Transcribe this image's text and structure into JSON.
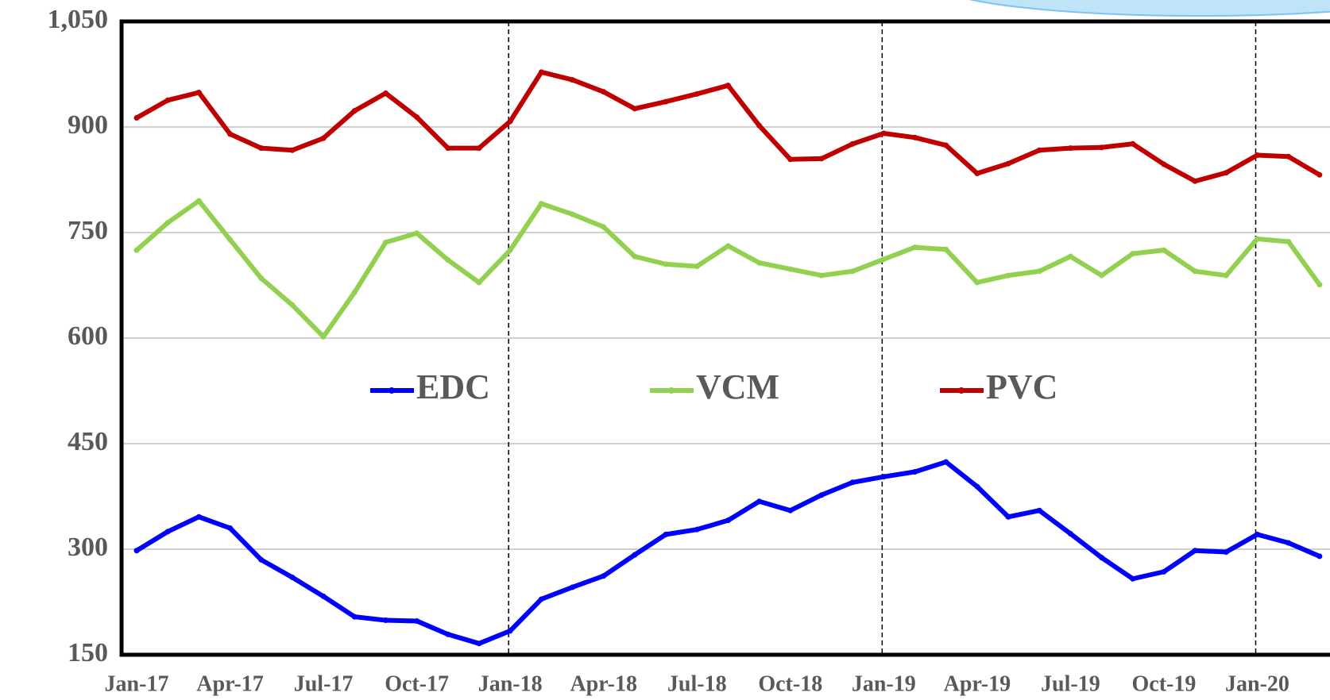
{
  "chart_data": {
    "type": "line",
    "categories": [
      "Jan-17",
      null,
      null,
      "Apr-17",
      null,
      null,
      "Jul-17",
      null,
      null,
      "Oct-17",
      null,
      null,
      "Jan-18",
      null,
      null,
      "Apr-18",
      null,
      null,
      "Jul-18",
      null,
      null,
      "Oct-18",
      null,
      null,
      "Jan-19",
      null,
      null,
      "Apr-19",
      null,
      null,
      "Jul-19",
      null,
      null,
      "Oct-19",
      null,
      null,
      "Jan-20",
      null,
      null
    ],
    "series": [
      {
        "name": "EDC",
        "color": "#0000ff",
        "values": [
          298,
          325,
          346,
          330,
          285,
          260,
          233,
          204,
          199,
          198,
          179,
          166,
          184,
          229,
          246,
          262,
          292,
          321,
          328,
          341,
          368,
          355,
          377,
          395,
          403,
          410,
          424,
          389,
          346,
          355,
          322,
          288,
          258,
          268,
          298,
          296,
          321,
          309,
          290
        ]
      },
      {
        "name": "VCM",
        "color": "#92d050",
        "values": [
          725,
          764,
          795,
          740,
          685,
          647,
          602,
          665,
          736,
          749,
          711,
          679,
          725,
          791,
          776,
          758,
          716,
          705,
          702,
          731,
          707,
          698,
          689,
          695,
          712,
          729,
          726,
          679,
          689,
          695,
          716,
          689,
          720,
          725,
          695,
          689,
          741,
          737,
          676
        ]
      },
      {
        "name": "PVC",
        "color": "#c00000",
        "values": [
          913,
          938,
          949,
          890,
          870,
          867,
          884,
          923,
          948,
          914,
          870,
          870,
          908,
          978,
          967,
          950,
          926,
          936,
          947,
          959,
          902,
          854,
          855,
          876,
          891,
          885,
          874,
          834,
          848,
          867,
          870,
          871,
          876,
          847,
          823,
          835,
          860,
          858,
          832
        ]
      }
    ],
    "ylim": [
      150,
      1050
    ],
    "yticks": [
      150,
      300,
      450,
      600,
      750,
      900,
      {
        "value": 1050,
        "label": "1,050"
      }
    ],
    "grid": true
  }
}
